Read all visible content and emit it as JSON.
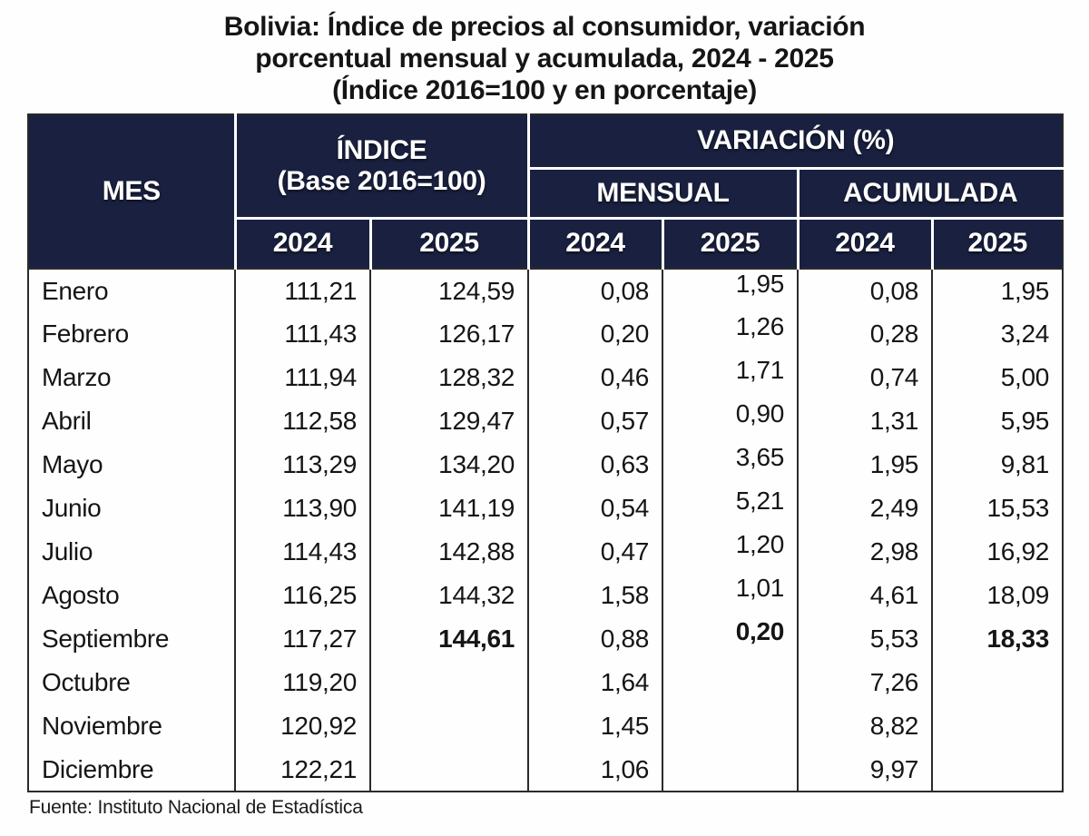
{
  "title": {
    "line1": "Bolivia: Índice de precios al consumidor, variación",
    "line2": "porcentual mensual y acumulada, 2024 - 2025",
    "line3": "(Índice 2016=100 y en porcentaje)"
  },
  "table": {
    "headers": {
      "mes": "MES",
      "indice_line1": "ÍNDICE",
      "indice_line2": "(Base 2016=100)",
      "variacion": "VARIACIÓN (%)",
      "mensual": "MENSUAL",
      "acumulada": "ACUMULADA",
      "years": [
        "2024",
        "2025",
        "2024",
        "2025",
        "2024",
        "2025"
      ]
    },
    "rows": [
      {
        "mes": "Enero",
        "i24": "111,21",
        "i25": "124,59",
        "m24": "0,08",
        "m25": "1,95",
        "a24": "0,08",
        "a25": "1,95"
      },
      {
        "mes": "Febrero",
        "i24": "111,43",
        "i25": "126,17",
        "m24": "0,20",
        "m25": "1,26",
        "a24": "0,28",
        "a25": "3,24"
      },
      {
        "mes": "Marzo",
        "i24": "111,94",
        "i25": "128,32",
        "m24": "0,46",
        "m25": "1,71",
        "a24": "0,74",
        "a25": "5,00"
      },
      {
        "mes": "Abril",
        "i24": "112,58",
        "i25": "129,47",
        "m24": "0,57",
        "m25": "0,90",
        "a24": "1,31",
        "a25": "5,95"
      },
      {
        "mes": "Mayo",
        "i24": "113,29",
        "i25": "134,20",
        "m24": "0,63",
        "m25": "3,65",
        "a24": "1,95",
        "a25": "9,81"
      },
      {
        "mes": "Junio",
        "i24": "113,90",
        "i25": "141,19",
        "m24": "0,54",
        "m25": "5,21",
        "a24": "2,49",
        "a25": "15,53"
      },
      {
        "mes": "Julio",
        "i24": "114,43",
        "i25": "142,88",
        "m24": "0,47",
        "m25": "1,20",
        "a24": "2,98",
        "a25": "16,92"
      },
      {
        "mes": "Agosto",
        "i24": "116,25",
        "i25": "144,32",
        "m24": "1,58",
        "m25": "1,01",
        "a24": "4,61",
        "a25": "18,09"
      },
      {
        "mes": "Septiembre",
        "i24": "117,27",
        "i25": "144,61",
        "m24": "0,88",
        "m25": "0,20",
        "a24": "5,53",
        "a25": "18,33"
      },
      {
        "mes": "Octubre",
        "i24": "119,20",
        "i25": "",
        "m24": "1,64",
        "m25": "",
        "a24": "7,26",
        "a25": ""
      },
      {
        "mes": "Noviembre",
        "i24": "120,92",
        "i25": "",
        "m24": "1,45",
        "m25": "",
        "a24": "8,82",
        "a25": ""
      },
      {
        "mes": "Diciembre",
        "i24": "122,21",
        "i25": "",
        "m24": "1,06",
        "m25": "",
        "a24": "9,97",
        "a25": ""
      }
    ]
  },
  "footer": {
    "source": "Fuente: Instituto Nacional de Estadística"
  },
  "colors": {
    "header_bg": "#1a2140",
    "header_text": "#ffffff",
    "body_text": "#151515",
    "border": "#2a2a2a"
  }
}
